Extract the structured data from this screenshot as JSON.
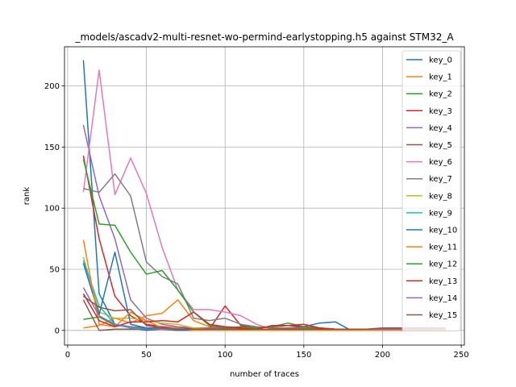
{
  "chart_data": {
    "type": "line",
    "title": "_models/ascadv2-multi-resnet-wo-permind-earlystopping.h5 against STM32_A",
    "xlabel": "number of traces",
    "ylabel": "rank",
    "xlim": [
      -2,
      252
    ],
    "ylim": [
      -12,
      232
    ],
    "xticks": [
      0,
      50,
      100,
      150,
      200,
      250
    ],
    "yticks": [
      0,
      50,
      100,
      150,
      200
    ],
    "grid": true,
    "legend_position": "top-right",
    "x": [
      10,
      20,
      30,
      40,
      50,
      60,
      70,
      80,
      90,
      100,
      110,
      120,
      130,
      140,
      150,
      160,
      170,
      180,
      190,
      200,
      210,
      220,
      230,
      240
    ],
    "series": [
      {
        "name": "key_0",
        "color": "#1f77b4",
        "values": [
          221,
          30,
          5,
          2,
          0,
          1,
          0,
          0,
          0,
          0,
          0,
          0,
          1,
          2,
          3,
          6,
          7,
          0,
          0,
          1,
          1,
          1,
          0,
          0
        ]
      },
      {
        "name": "key_1",
        "color": "#ff7f0e",
        "values": [
          2,
          4,
          10,
          6,
          12,
          14,
          25,
          8,
          3,
          2,
          1,
          1,
          1,
          1,
          1,
          1,
          0,
          0,
          0,
          0,
          0,
          0,
          0,
          0
        ]
      },
      {
        "name": "key_2",
        "color": "#2ca02c",
        "values": [
          9,
          11,
          4,
          3,
          2,
          2,
          1,
          1,
          1,
          1,
          1,
          1,
          1,
          1,
          1,
          1,
          1,
          0,
          0,
          0,
          0,
          0,
          0,
          0
        ]
      },
      {
        "name": "key_3",
        "color": "#d62728",
        "values": [
          143,
          75,
          28,
          12,
          5,
          3,
          2,
          2,
          1,
          20,
          4,
          2,
          3,
          4,
          3,
          2,
          1,
          1,
          1,
          1,
          1,
          1,
          1,
          1
        ]
      },
      {
        "name": "key_4",
        "color": "#9467bd",
        "values": [
          168,
          110,
          75,
          25,
          10,
          5,
          3,
          2,
          2,
          2,
          2,
          1,
          1,
          1,
          1,
          1,
          1,
          1,
          1,
          1,
          1,
          1,
          1,
          1
        ]
      },
      {
        "name": "key_5",
        "color": "#8c564b",
        "values": [
          25,
          0,
          1,
          1,
          1,
          1,
          0,
          0,
          0,
          0,
          0,
          0,
          0,
          0,
          0,
          0,
          0,
          0,
          0,
          0,
          0,
          0,
          0,
          0
        ]
      },
      {
        "name": "key_6",
        "color": "#e377c2",
        "values": [
          113,
          213,
          111,
          141,
          112,
          68,
          33,
          17,
          17,
          15,
          12,
          5,
          1,
          1,
          1,
          1,
          1,
          1,
          1,
          1,
          1,
          1,
          1,
          1
        ]
      },
      {
        "name": "key_7",
        "color": "#7f7f7f",
        "values": [
          116,
          113,
          128,
          110,
          56,
          44,
          38,
          10,
          8,
          10,
          5,
          3,
          2,
          2,
          2,
          2,
          1,
          1,
          1,
          1,
          1,
          1,
          1,
          1
        ]
      },
      {
        "name": "key_8",
        "color": "#bcbd22",
        "values": [
          60,
          15,
          10,
          10,
          8,
          6,
          5,
          2,
          1,
          1,
          1,
          1,
          1,
          1,
          1,
          0,
          0,
          0,
          0,
          0,
          0,
          0,
          0,
          0
        ]
      },
      {
        "name": "key_9",
        "color": "#17becf",
        "values": [
          57,
          20,
          5,
          2,
          1,
          1,
          0,
          0,
          0,
          0,
          0,
          0,
          0,
          0,
          0,
          0,
          0,
          0,
          0,
          0,
          0,
          0,
          0,
          0
        ]
      },
      {
        "name": "key_10",
        "color": "#1f77b4",
        "values": [
          55,
          13,
          64,
          5,
          2,
          1,
          0,
          0,
          0,
          0,
          0,
          0,
          0,
          0,
          0,
          0,
          0,
          0,
          0,
          0,
          0,
          0,
          0,
          0
        ]
      },
      {
        "name": "key_11",
        "color": "#ff7f0e",
        "values": [
          74,
          5,
          3,
          15,
          8,
          2,
          2,
          0,
          0,
          0,
          0,
          0,
          0,
          0,
          0,
          0,
          0,
          0,
          0,
          0,
          0,
          0,
          0,
          0
        ]
      },
      {
        "name": "key_12",
        "color": "#2ca02c",
        "values": [
          140,
          87,
          86,
          64,
          46,
          49,
          33,
          15,
          4,
          2,
          3,
          2,
          3,
          6,
          3,
          1,
          1,
          1,
          1,
          1,
          1,
          1,
          1,
          1
        ]
      },
      {
        "name": "key_13",
        "color": "#d62728",
        "values": [
          30,
          8,
          3,
          7,
          7,
          8,
          7,
          15,
          5,
          3,
          2,
          1,
          4,
          4,
          5,
          2,
          1,
          1,
          1,
          1,
          1,
          1,
          1,
          1
        ]
      },
      {
        "name": "key_14",
        "color": "#9467bd",
        "values": [
          35,
          12,
          5,
          3,
          1,
          1,
          1,
          1,
          1,
          1,
          1,
          1,
          1,
          1,
          1,
          1,
          1,
          1,
          1,
          1,
          1,
          1,
          1,
          1
        ]
      },
      {
        "name": "key_15",
        "color": "#8c564b",
        "values": [
          28,
          19,
          16,
          17,
          4,
          2,
          1,
          1,
          1,
          1,
          1,
          1,
          1,
          1,
          1,
          1,
          1,
          1,
          1,
          2,
          2,
          2,
          2,
          2
        ]
      }
    ]
  }
}
